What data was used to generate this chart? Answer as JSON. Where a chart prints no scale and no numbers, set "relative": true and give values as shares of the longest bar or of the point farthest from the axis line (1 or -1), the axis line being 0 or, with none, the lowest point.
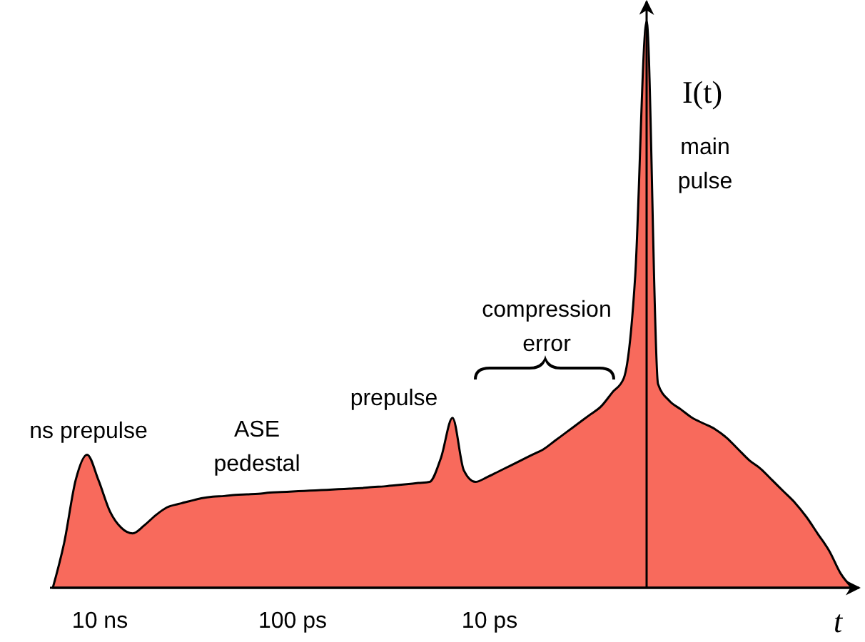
{
  "chart_data": {
    "type": "area",
    "relative": true,
    "xlabel": "t",
    "ylabel": "I(t)",
    "categories": [
      null,
      null,
      null,
      null,
      null,
      null,
      null,
      null,
      null,
      null,
      null,
      null,
      null,
      null,
      null,
      null,
      null,
      null,
      null,
      null,
      null,
      null,
      null,
      null,
      null,
      null,
      null,
      null,
      null,
      null,
      null,
      null,
      null,
      null,
      null,
      null,
      null,
      null,
      null,
      null,
      null,
      null,
      null,
      null,
      null,
      null,
      null,
      null,
      null,
      null,
      null,
      null,
      null,
      null,
      null,
      null,
      null,
      null,
      null,
      null,
      null,
      null,
      null,
      null,
      null,
      null,
      null,
      null,
      null,
      null,
      null
    ],
    "series": [
      {
        "color": "#f86a5c",
        "values": [
          0,
          0.08,
          0.19,
          0.235,
          0.19,
          0.135,
          0.106,
          0.096,
          0.11,
          0.128,
          0.142,
          0.148,
          0.153,
          0.158,
          0.161,
          0.162,
          0.164,
          0.165,
          0.166,
          0.168,
          0.169,
          0.17,
          0.171,
          0.172,
          0.173,
          0.174,
          0.175,
          0.176,
          0.178,
          0.179,
          0.181,
          0.183,
          0.185,
          0.187,
          0.23,
          0.3,
          0.207,
          0.187,
          0.195,
          0.205,
          0.215,
          0.225,
          0.235,
          0.245,
          0.26,
          0.275,
          0.29,
          0.305,
          0.32,
          0.345,
          0.37,
          0.55,
          1,
          0.36,
          0.33,
          0.315,
          0.3,
          0.29,
          0.28,
          0.265,
          0.245,
          0.225,
          0.21,
          0.19,
          0.17,
          0.15,
          0.125,
          0.095,
          0.065,
          0.025,
          0
        ]
      }
    ],
    "annotations": [
      "ns prepulse",
      "ASE\npedestal",
      "prepulse",
      "compression\nerror",
      "main\npulse",
      "10 ns",
      "100 ps",
      "10 ps"
    ]
  }
}
